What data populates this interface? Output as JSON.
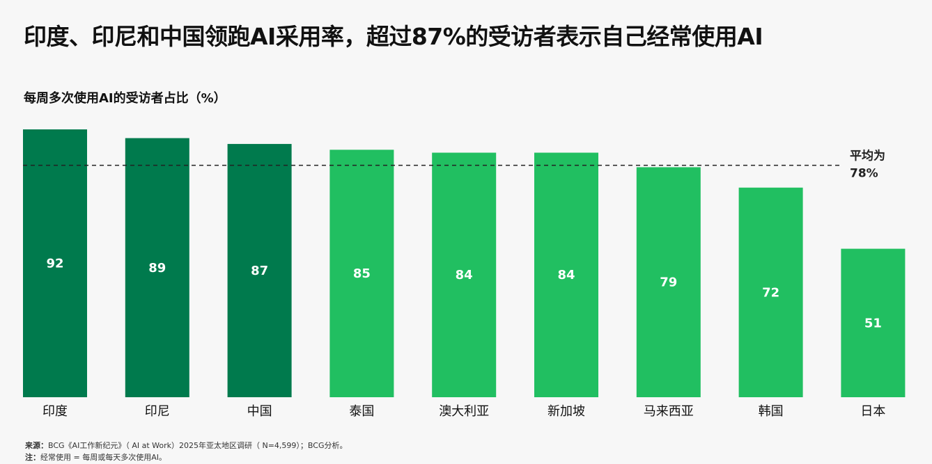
{
  "title": "印度、印尼和中国领跑AI采用率，超过87%的受访者表示自己经常使用AI",
  "chart_data": {
    "type": "bar",
    "title": "每周多次使用AI的受访者占比（%）",
    "categories": [
      "印度",
      "印尼",
      "中国",
      "泰国",
      "澳大利亚",
      "新加坡",
      "马来西亚",
      "韩国",
      "日本"
    ],
    "values": [
      92,
      89,
      87,
      85,
      84,
      84,
      79,
      72,
      51
    ],
    "highlight": [
      true,
      true,
      true,
      false,
      false,
      false,
      false,
      false,
      false
    ],
    "ylim": [
      0,
      92
    ],
    "grid": false,
    "reference_line": {
      "value": 78,
      "label_line1": "平均为",
      "label_line2": "78%"
    },
    "colors": {
      "highlight": "#007a4d",
      "default": "#21bf61",
      "label": "#ffffff",
      "reference": "#222222"
    }
  },
  "footnotes": {
    "source_label": "来源：",
    "source_text": "BCG《AI工作新纪元》（ AI at Work）2025年亚太地区调研（ N=4,599）；BCG分析。",
    "note_label": "注：",
    "note_text": "经常使用 = 每周或每天多次使用AI。"
  }
}
